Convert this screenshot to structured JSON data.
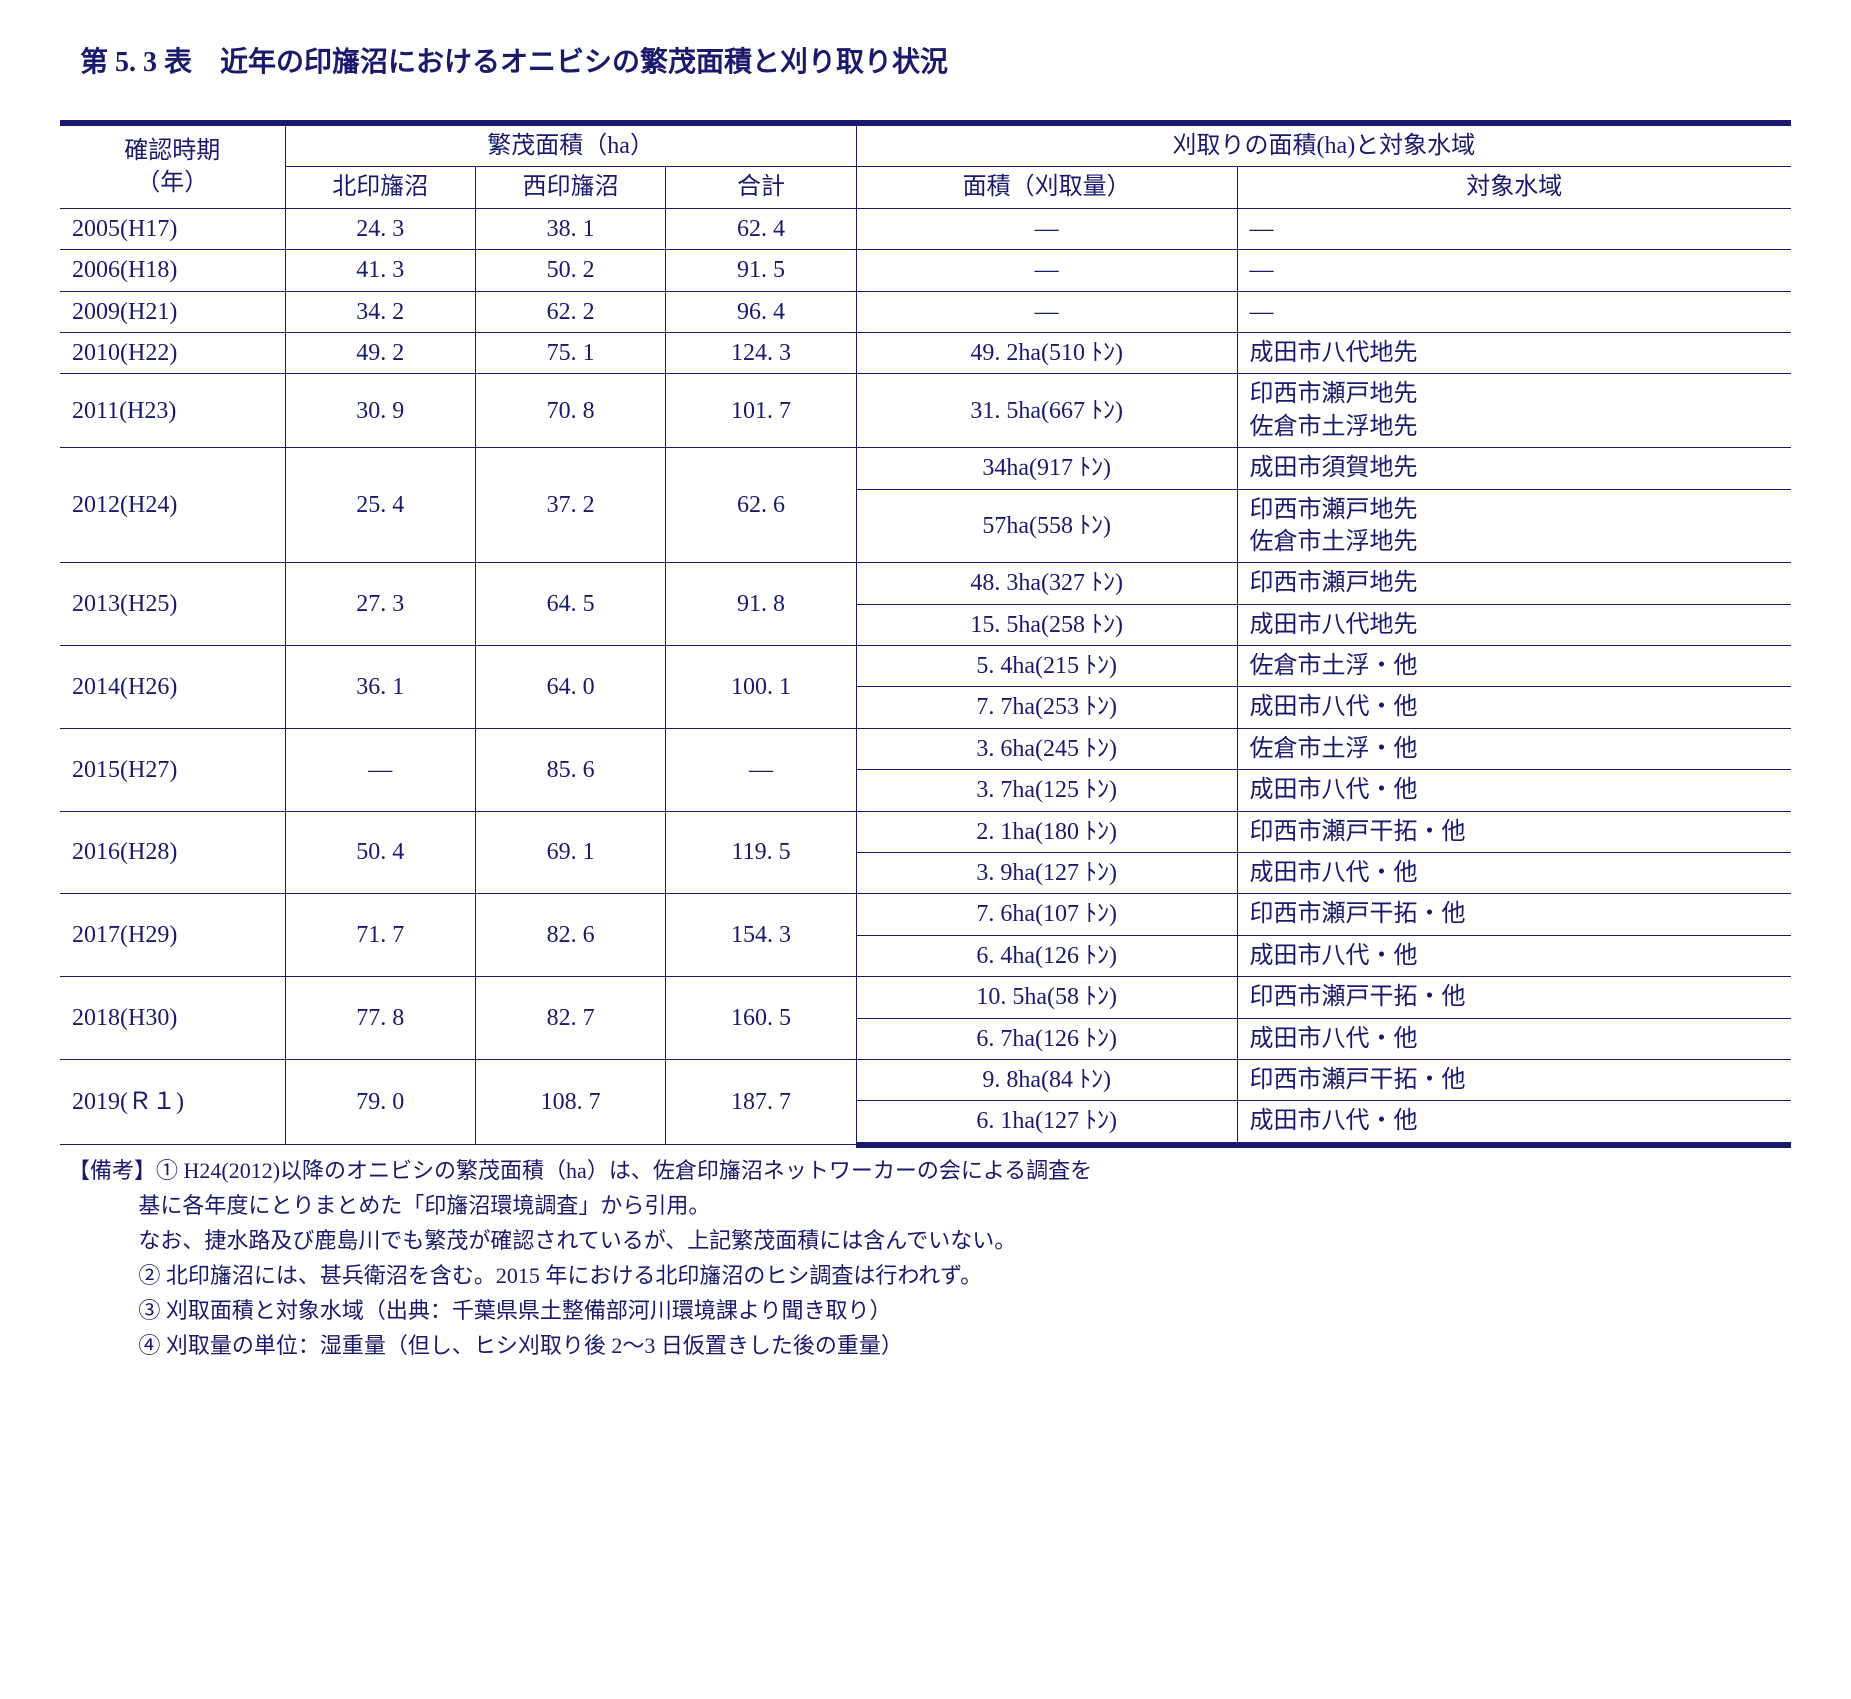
{
  "title": "第 5. 3 表　近年の印旛沼におけるオニビシの繁茂面積と刈り取り状況",
  "header": {
    "col1_line1": "確認時期",
    "col1_line2": "（年）",
    "group_area": "繁茂面積（ha）",
    "group_cut": "刈取りの面積(ha)と対象水域",
    "sub_n": "北印旛沼",
    "sub_w": "西印旛沼",
    "sub_t": "合計",
    "sub_cut": "面積（刈取量）",
    "sub_loc": "対象水域"
  },
  "rows": [
    {
      "year": "2005(H17)",
      "n": "24. 3",
      "w": "38. 1",
      "t": "62. 4",
      "cuts": [
        {
          "a": "—",
          "l": "—"
        }
      ]
    },
    {
      "year": "2006(H18)",
      "n": "41. 3",
      "w": "50. 2",
      "t": "91. 5",
      "cuts": [
        {
          "a": "—",
          "l": "—"
        }
      ]
    },
    {
      "year": "2009(H21)",
      "n": "34. 2",
      "w": "62. 2",
      "t": "96. 4",
      "cuts": [
        {
          "a": "—",
          "l": "—"
        }
      ]
    },
    {
      "year": "2010(H22)",
      "n": "49. 2",
      "w": "75. 1",
      "t": "124. 3",
      "cuts": [
        {
          "a": "49. 2ha(510 ﾄﾝ)",
          "l": "成田市八代地先"
        }
      ]
    },
    {
      "year": "2011(H23)",
      "n": "30. 9",
      "w": "70. 8",
      "t": "101. 7",
      "cuts": [
        {
          "a": "31. 5ha(667 ﾄﾝ)",
          "l": "印西市瀬戸地先\n佐倉市土浮地先"
        }
      ]
    },
    {
      "year": "2012(H24)",
      "n": "25. 4",
      "w": "37. 2",
      "t": "62. 6",
      "cuts": [
        {
          "a": "34ha(917 ﾄﾝ)",
          "l": "成田市須賀地先"
        },
        {
          "a": "57ha(558 ﾄﾝ)",
          "l": "印西市瀬戸地先\n佐倉市土浮地先"
        }
      ]
    },
    {
      "year": "2013(H25)",
      "n": "27. 3",
      "w": "64. 5",
      "t": "91. 8",
      "cuts": [
        {
          "a": "48. 3ha(327 ﾄﾝ)",
          "l": "印西市瀬戸地先"
        },
        {
          "a": "15. 5ha(258 ﾄﾝ)",
          "l": "成田市八代地先"
        }
      ]
    },
    {
      "year": "2014(H26)",
      "n": "36. 1",
      "w": "64. 0",
      "t": "100. 1",
      "cuts": [
        {
          "a": "5. 4ha(215 ﾄﾝ)",
          "l": "佐倉市土浮・他"
        },
        {
          "a": "7. 7ha(253 ﾄﾝ)",
          "l": "成田市八代・他"
        }
      ]
    },
    {
      "year": "2015(H27)",
      "n": "—",
      "w": "85. 6",
      "t": "—",
      "cuts": [
        {
          "a": "3. 6ha(245 ﾄﾝ)",
          "l": "佐倉市土浮・他"
        },
        {
          "a": "3. 7ha(125 ﾄﾝ)",
          "l": "成田市八代・他"
        }
      ]
    },
    {
      "year": "2016(H28)",
      "n": "50. 4",
      "w": "69. 1",
      "t": "119. 5",
      "cuts": [
        {
          "a": "2. 1ha(180 ﾄﾝ)",
          "l": "印西市瀬戸干拓・他"
        },
        {
          "a": "3. 9ha(127 ﾄﾝ)",
          "l": "成田市八代・他"
        }
      ]
    },
    {
      "year": "2017(H29)",
      "n": "71. 7",
      "w": "82. 6",
      "t": "154. 3",
      "cuts": [
        {
          "a": "7. 6ha(107 ﾄﾝ)",
          "l": "印西市瀬戸干拓・他"
        },
        {
          "a": "6. 4ha(126 ﾄﾝ)",
          "l": "成田市八代・他"
        }
      ]
    },
    {
      "year": "2018(H30)",
      "n": "77. 8",
      "w": "82. 7",
      "t": "160. 5",
      "cuts": [
        {
          "a": "10. 5ha(58 ﾄﾝ)",
          "l": "印西市瀬戸干拓・他"
        },
        {
          "a": "6. 7ha(126 ﾄﾝ)",
          "l": "成田市八代・他"
        }
      ]
    },
    {
      "year": "2019(Ｒ１)",
      "n": "79. 0",
      "w": "108. 7",
      "t": "187. 7",
      "cuts": [
        {
          "a": "9. 8ha(84 ﾄﾝ)",
          "l": "印西市瀬戸干拓・他"
        },
        {
          "a": "6. 1ha(127 ﾄﾝ)",
          "l": "成田市八代・他"
        }
      ]
    }
  ],
  "notes": {
    "lead": "【備考】",
    "n1a": "① H24(2012)以降のオニビシの繁茂面積（ha）は、佐倉印旛沼ネットワーカーの会による調査を",
    "n1b": "基に各年度にとりまとめた「印旛沼環境調査」から引用。",
    "n1c": "なお、捷水路及び鹿島川でも繁茂が確認されているが、上記繁茂面積には含んでいない。",
    "n2": "② 北印旛沼には、甚兵衛沼を含む。2015 年における北印旛沼のヒシ調査は行われず。",
    "n3": "③ 刈取面積と対象水域（出典：千葉県県土整備部河川環境課より聞き取り）",
    "n4": "④ 刈取量の単位：湿重量（但し、ヒシ刈取り後 2～3 日仮置きした後の重量）"
  },
  "style": {
    "text_color": "#1a1a6c",
    "col_widths_pct": [
      13,
      11,
      11,
      11,
      22,
      32
    ]
  }
}
